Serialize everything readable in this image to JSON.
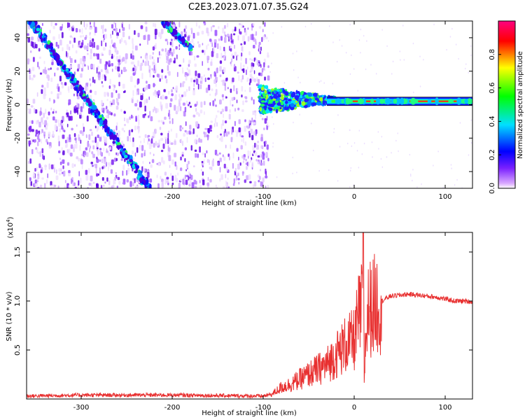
{
  "figure_title": "C2E3.2023.071.07.35.G24",
  "chart_data": [
    {
      "type": "heatmap",
      "title": "C2E3.2023.071.07.35.G24",
      "xlabel": "Height of straight line (km)",
      "ylabel": "Frequency (Hz)",
      "xlim": [
        -360,
        130
      ],
      "ylim": [
        -50,
        50
      ],
      "xticks": [
        -300,
        -200,
        -100,
        0,
        100
      ],
      "yticks": [
        -40,
        -20,
        0,
        20,
        40
      ],
      "colorbar": {
        "label": "Normalized spectral amplitude",
        "range": [
          0,
          1
        ],
        "ticks": [
          0.0,
          0.2,
          0.4,
          0.6,
          0.8
        ],
        "colormap": [
          "#ffffff",
          "#cc66ff",
          "#0000ff",
          "#00ffff",
          "#00ff00",
          "#ffff00",
          "#ff0000",
          "#ff00aa"
        ]
      },
      "features": {
        "left_noise_x_range": [
          -360,
          -95
        ],
        "streak_a": {
          "x": [
            -355,
            -225
          ],
          "y": [
            50,
            -50
          ]
        },
        "streak_b": {
          "x": [
            -210,
            -180
          ],
          "y": [
            50,
            33
          ]
        },
        "signal_line": {
          "x": [
            -100,
            130
          ],
          "y": 2
        },
        "signal_line_start": -100
      },
      "grid": false
    },
    {
      "type": "line",
      "xlabel": "Height of straight line (km)",
      "ylabel": "SNR (10 * v/v)",
      "y_multiplier_label": "(x10",
      "y_multiplier_exp": "4",
      "y_multiplier_close": ")",
      "xlim": [
        -360,
        130
      ],
      "ylim": [
        0,
        1.7
      ],
      "xticks": [
        -300,
        -200,
        -100,
        0,
        100
      ],
      "yticks": [
        0.5,
        1.0,
        1.5
      ],
      "color": "#e83030",
      "series": [
        {
          "x": [
            -360,
            -300,
            -200,
            -100,
            -90,
            -80,
            -70,
            -60,
            -50,
            -40,
            -30,
            -20,
            -10,
            0,
            5,
            8,
            9,
            10,
            11,
            12,
            15,
            20,
            30,
            40,
            50,
            60,
            70,
            80,
            90,
            100,
            110,
            120,
            130
          ],
          "values": [
            0.03,
            0.04,
            0.04,
            0.03,
            0.05,
            0.12,
            0.15,
            0.2,
            0.25,
            0.3,
            0.35,
            0.45,
            0.55,
            0.6,
            0.85,
            0.9,
            1.3,
            1.7,
            0.2,
            0.5,
            0.9,
            0.95,
            1.0,
            1.05,
            1.06,
            1.07,
            1.06,
            1.05,
            1.04,
            1.02,
            1.0,
            1.0,
            0.99
          ]
        }
      ],
      "grid": false
    }
  ]
}
